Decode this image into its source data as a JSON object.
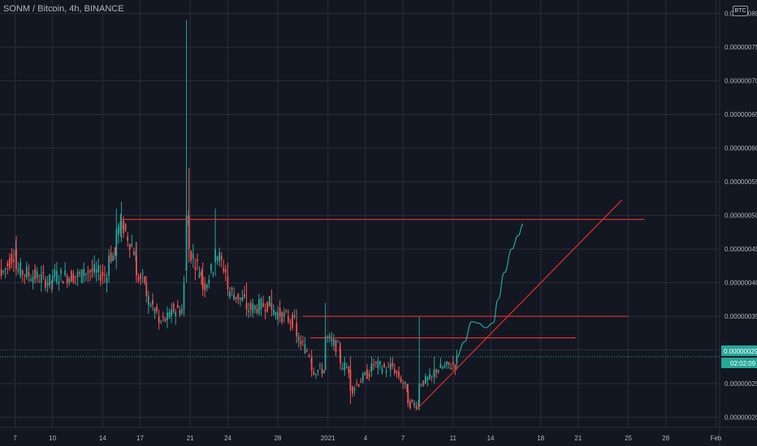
{
  "header": {
    "title": "SONM / Bitcoin, 4h, BINANCE",
    "currency_badge": "BTC"
  },
  "colors": {
    "background": "#131722",
    "grid": "#2a2e39",
    "up": "#26a69a",
    "down": "#ef5350",
    "drawing": "#e0302e",
    "projection": "#26a69a",
    "axis_text": "#b2b5be",
    "tag_bg": "#26a69a"
  },
  "price_tags": {
    "current_price": "0.00000029",
    "countdown": "02:02:09"
  },
  "chart_data": {
    "type": "candlestick",
    "title": "SONM / Bitcoin, 4h, BINANCE",
    "y_scale_unit": "BTC",
    "ylim": [
      1.85e-08,
      8.2e-08
    ],
    "y_ticks": [
      "0.00000020",
      "0.00000025",
      "0.00000030",
      "0.00000035",
      "0.00000040",
      "0.00000045",
      "0.00000050",
      "0.00000055",
      "0.00000060",
      "0.00000065",
      "0.00000070",
      "0.00000075",
      "0.00000080"
    ],
    "y_tick_values": [
      2e-08,
      2.5e-08,
      3e-08,
      3.5e-08,
      4e-08,
      4.5e-08,
      5e-08,
      5.5e-08,
      6e-08,
      6.5e-08,
      7e-08,
      7.5e-08,
      8e-08
    ],
    "x_ticks": [
      "7",
      "10",
      "14",
      "17",
      "21",
      "24",
      "28",
      "2021",
      "4",
      "7",
      "11",
      "14",
      "18",
      "21",
      "25",
      "28",
      "Feb"
    ],
    "x_tick_days": [
      -24,
      -21,
      -17,
      -14,
      -10,
      -7,
      -3,
      1,
      4,
      7,
      11,
      14,
      18,
      21,
      25,
      28,
      32
    ],
    "x_unit": "days from 2021-01-01",
    "xlim": [
      -25.2,
      32.3
    ],
    "grid": true,
    "candle_days_per_bar": 0.1667,
    "candle_anchors": {
      "comment_free_fields": true,
      "start_day": -25.2,
      "end_day": 11.3,
      "ohlc_samples": [
        [
          -25.1,
          4.2e-08,
          4.35e-08,
          4.05e-08,
          4.1e-08
        ],
        [
          -23.9,
          4.5e-08,
          4.7e-08,
          4.1e-08,
          4.2e-08
        ],
        [
          -21.0,
          4e-08,
          4.2e-08,
          3.9e-08,
          4.1e-08
        ],
        [
          -18.5,
          4.1e-08,
          4.3e-08,
          4e-08,
          4.2e-08
        ],
        [
          -16.5,
          4.1e-08,
          4.5e-08,
          4e-08,
          4.4e-08
        ],
        [
          -15.9,
          4.4e-08,
          5.1e-08,
          4.2e-08,
          4.8e-08
        ],
        [
          -15.5,
          4.8e-08,
          5.2e-08,
          4.6e-08,
          4.9e-08
        ],
        [
          -14.3,
          4.4e-08,
          4.6e-08,
          4e-08,
          4.1e-08
        ],
        [
          -13.5,
          4e-08,
          4.1e-08,
          3.7e-08,
          3.8e-08
        ],
        [
          -12.5,
          3.5e-08,
          3.6e-08,
          3.3e-08,
          3.4e-08
        ],
        [
          -11.5,
          3.5e-08,
          3.7e-08,
          3.4e-08,
          3.6e-08
        ],
        [
          -10.5,
          3.6e-08,
          4.1e-08,
          3.5e-08,
          4e-08
        ],
        [
          -10.3,
          4.2e-08,
          7.9e-08,
          4e-08,
          5e-08
        ],
        [
          -10.1,
          5e-08,
          5.7e-08,
          4.3e-08,
          4.5e-08
        ],
        [
          -9.0,
          4.1e-08,
          4.3e-08,
          3.8e-08,
          3.9e-08
        ],
        [
          -8.0,
          4.3e-08,
          5.1e-08,
          4.1e-08,
          4.5e-08
        ],
        [
          -7.0,
          4.1e-08,
          4.3e-08,
          3.8e-08,
          3.9e-08
        ],
        [
          -5.5,
          3.7e-08,
          4e-08,
          3.5e-08,
          3.6e-08
        ],
        [
          -3.5,
          3.7e-08,
          3.9e-08,
          3.5e-08,
          3.6e-08
        ],
        [
          -1.5,
          3.4e-08,
          3.6e-08,
          3.1e-08,
          3.2e-08
        ],
        [
          -0.3,
          2.9e-08,
          3e-08,
          2.6e-08,
          2.7e-08
        ],
        [
          0.8,
          2.7e-08,
          3.7e-08,
          2.7e-08,
          3.2e-08
        ],
        [
          2.0,
          3e-08,
          3.1e-08,
          2.7e-08,
          2.8e-08
        ],
        [
          2.8,
          2.7e-08,
          2.9e-08,
          2.2e-08,
          2.4e-08
        ],
        [
          4.5,
          2.7e-08,
          2.9e-08,
          2.6e-08,
          2.8e-08
        ],
        [
          6.0,
          2.7e-08,
          2.9e-08,
          2.6e-08,
          2.8e-08
        ],
        [
          7.4,
          2.4e-08,
          2.5e-08,
          2.15e-08,
          2.2e-08
        ],
        [
          8.3,
          2.2e-08,
          3.5e-08,
          2.1e-08,
          2.5e-08
        ],
        [
          9.5,
          2.6e-08,
          2.9e-08,
          2.5e-08,
          2.7e-08
        ],
        [
          11.3,
          2.8e-08,
          3e-08,
          2.7e-08,
          2.9e-08
        ]
      ]
    },
    "drawings": {
      "horizontal_lines": [
        {
          "price": 4.94e-08,
          "from_day": -15.5,
          "to_day": 26.3
        },
        {
          "price": 3.5e-08,
          "from_day": -1.0,
          "to_day": 25.0
        },
        {
          "price": 3.18e-08,
          "from_day": -0.4,
          "to_day": 20.8
        }
      ],
      "trend_line": {
        "from": [
          8.0,
          2.1e-08
        ],
        "to": [
          24.5,
          5.23e-08
        ]
      },
      "projection_path": [
        [
          11.3,
          2.9e-08
        ],
        [
          11.9,
          3.12e-08
        ],
        [
          12.5,
          3.42e-08
        ],
        [
          13.0,
          3.4e-08
        ],
        [
          13.6,
          3.33e-08
        ],
        [
          14.2,
          3.4e-08
        ],
        [
          14.6,
          3.75e-08
        ],
        [
          15.1,
          4.15e-08
        ],
        [
          15.7,
          4.5e-08
        ],
        [
          16.2,
          4.7e-08
        ],
        [
          16.6,
          4.87e-08
        ]
      ]
    }
  }
}
